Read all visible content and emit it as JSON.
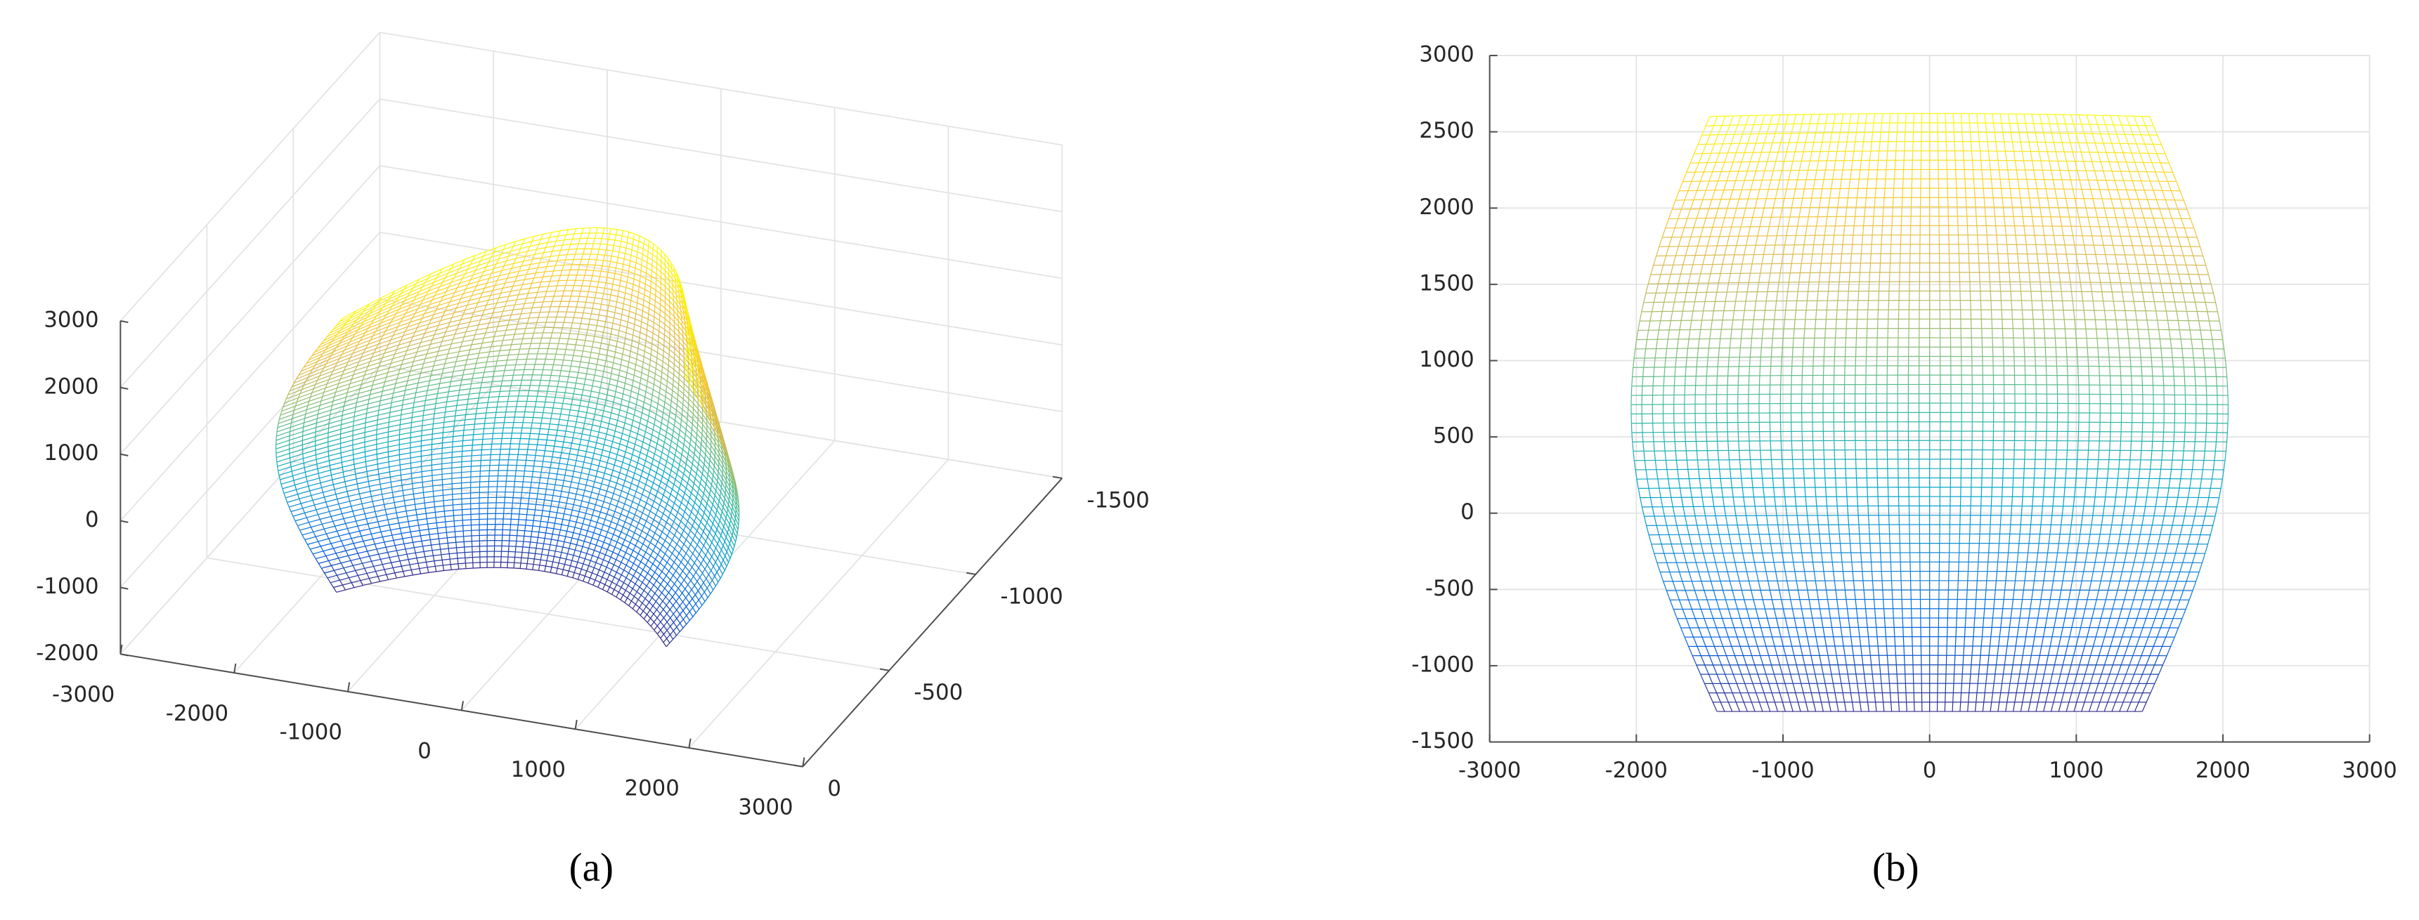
{
  "chart_data": [
    {
      "type": "surface3d",
      "caption": "(a)",
      "xlim": [
        -3000,
        3000
      ],
      "xticks": [
        -3000,
        -2000,
        -1000,
        0,
        1000,
        2000,
        3000
      ],
      "ylim": [
        -1500,
        0
      ],
      "yticks": [
        -1500,
        -1000,
        -500,
        0
      ],
      "zlim": [
        -2000,
        3000
      ],
      "zticks": [
        -2000,
        -1000,
        0,
        1000,
        2000,
        3000
      ],
      "grid": true
    },
    {
      "type": "mesh2d",
      "caption": "(b)",
      "xlim": [
        -3000,
        3000
      ],
      "xticks": [
        -3000,
        -2000,
        -1000,
        0,
        1000,
        2000,
        3000
      ],
      "ylim": [
        -1500,
        3000
      ],
      "yticks": [
        -1500,
        -1000,
        -500,
        0,
        500,
        1000,
        1500,
        2000,
        2500,
        3000
      ],
      "grid": true
    }
  ]
}
